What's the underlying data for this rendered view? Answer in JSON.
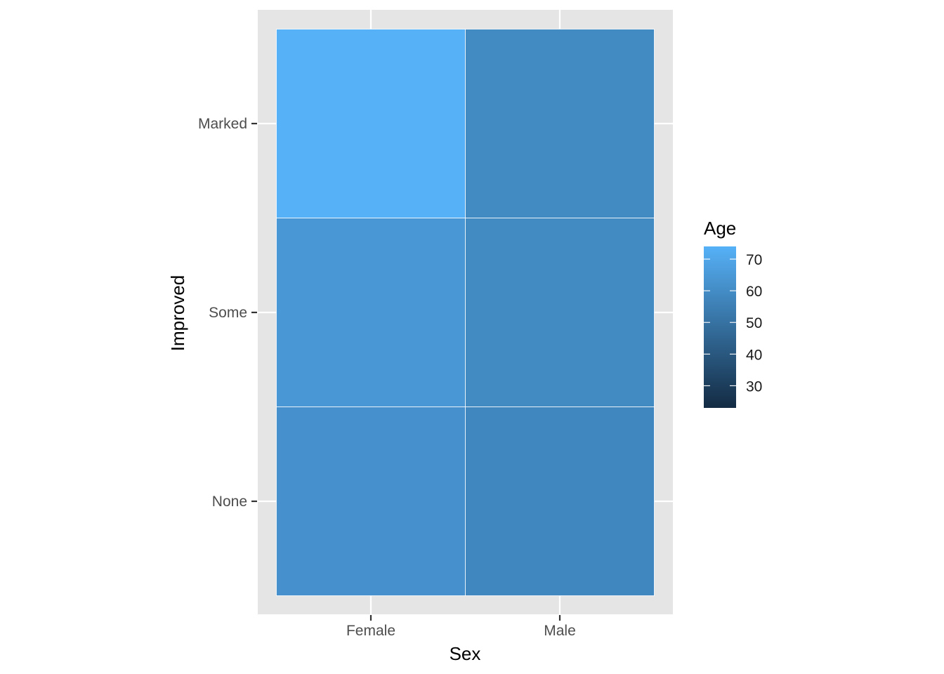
{
  "chart_data": {
    "type": "heatmap",
    "title": "",
    "xlabel": "Sex",
    "ylabel": "Improved",
    "x_categories": [
      "Female",
      "Male"
    ],
    "y_categories": [
      "None",
      "Some",
      "Marked"
    ],
    "cells": [
      {
        "x": "Female",
        "y": "None",
        "value": 62
      },
      {
        "x": "Female",
        "y": "Some",
        "value": 64
      },
      {
        "x": "Female",
        "y": "Marked",
        "value": 74
      },
      {
        "x": "Male",
        "y": "None",
        "value": 58
      },
      {
        "x": "Male",
        "y": "Some",
        "value": 59
      },
      {
        "x": "Male",
        "y": "Marked",
        "value": 59
      }
    ],
    "legend": {
      "title": "Age",
      "ticks": [
        30,
        40,
        50,
        60,
        70
      ],
      "range": [
        23,
        74
      ],
      "low_color": "#132B43",
      "high_color": "#56B1F7",
      "placement": "right"
    },
    "panel_background": "#e5e5e5",
    "grid": true,
    "grid_color": "#ffffff",
    "tile_border_color": "#ffffff"
  }
}
